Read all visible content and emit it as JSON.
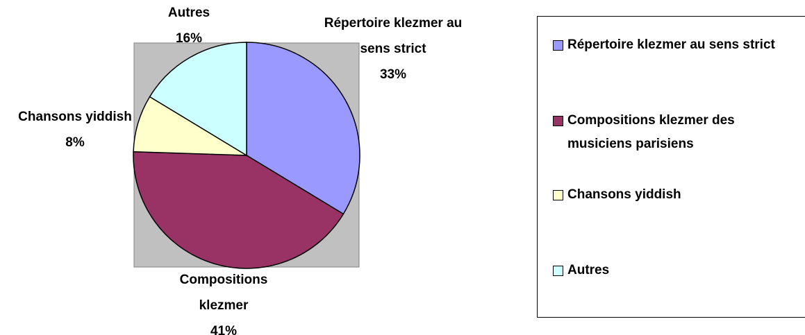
{
  "chart_data": {
    "type": "pie",
    "categories": [
      "Répertoire klezmer au sens strict",
      "Compositions klezmer des musiciens parisiens",
      "Chansons yiddish",
      "Autres"
    ],
    "labels": [
      "Répertoire klezmer au sens strict",
      "Compositions klezmer",
      "Chansons yiddish",
      "Autres"
    ],
    "values": [
      33,
      41,
      8,
      16
    ],
    "value_labels": [
      "33%",
      "41%",
      "8%",
      "16%"
    ],
    "colors": [
      "#9999ff",
      "#993366",
      "#ffffcc",
      "#ccffff"
    ],
    "legend": "right"
  }
}
